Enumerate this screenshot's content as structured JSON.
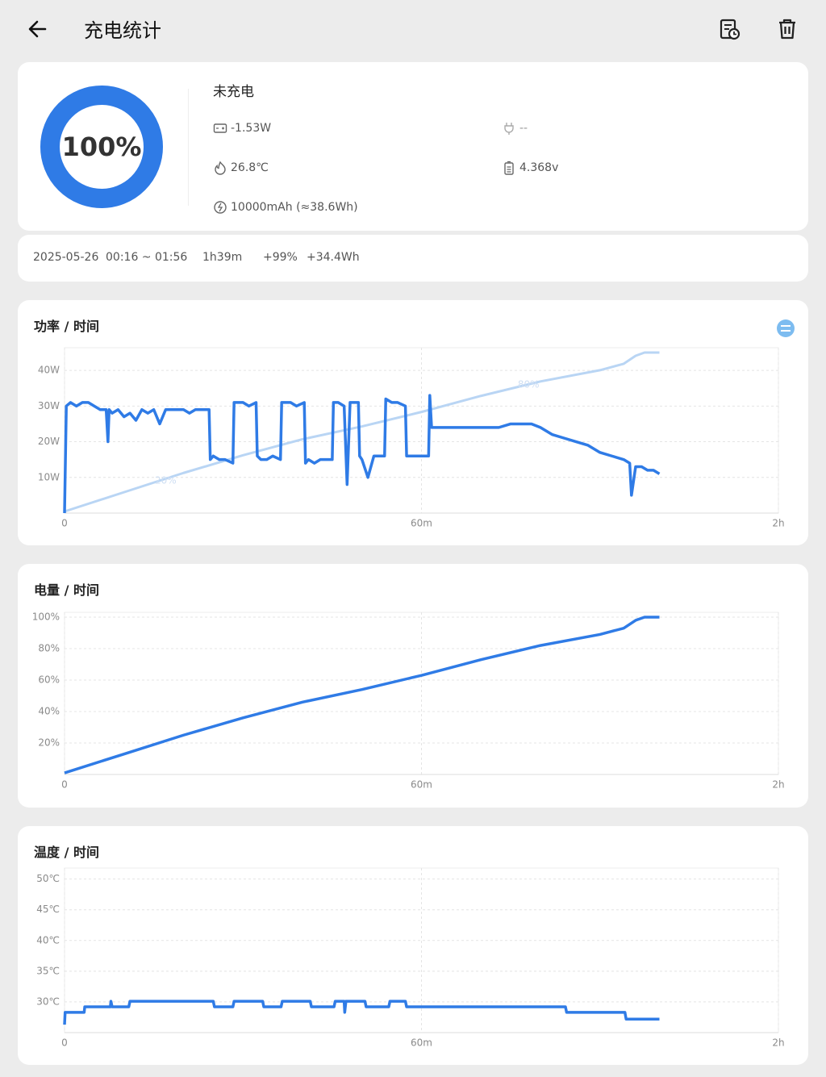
{
  "header": {
    "title": "充电统计"
  },
  "battery": {
    "value": 100,
    "label": "100%"
  },
  "status": {
    "state": "未充电",
    "power": "-1.53W",
    "input": "--",
    "temperature": "26.8℃",
    "voltage": "4.368v",
    "capacity": "10000mAh (≈38.6Wh)"
  },
  "session": {
    "date": "2025-05-26",
    "time_range": "00:16 ~ 01:56",
    "duration": "1h39m",
    "percent_gain": "+99%",
    "energy_gain": "+34.4Wh"
  },
  "chart_data": [
    {
      "type": "line",
      "title": "功率 / 时间",
      "xlim": [
        0,
        120
      ],
      "xticks": [
        0,
        {
          "value": 60,
          "label": "60m"
        },
        {
          "value": 120,
          "label": "2h"
        }
      ],
      "ylim": [
        0,
        45
      ],
      "yticks": [
        {
          "value": 10,
          "label": "10W"
        },
        {
          "value": 20,
          "label": "20W"
        },
        {
          "value": 30,
          "label": "30W"
        },
        {
          "value": 40,
          "label": "40W"
        }
      ],
      "y2lim": [
        0,
        100
      ],
      "grid": true,
      "series": [
        {
          "color": "#b9d5f4",
          "axis": "y2",
          "x": [
            0,
            10,
            20,
            30,
            40,
            50,
            60,
            70,
            80,
            90,
            94,
            96,
            97.5,
            100
          ],
          "values": [
            1,
            13,
            25,
            36,
            46,
            54,
            63,
            73,
            82,
            89,
            93,
            98,
            100,
            100
          ]
        },
        {
          "color": "#2f7be6",
          "x": [
            0,
            0.3,
            1,
            2,
            3,
            4,
            5,
            6,
            7,
            7.3,
            7.5,
            8,
            9,
            10,
            11,
            12,
            13,
            14,
            15,
            16,
            17,
            18,
            19,
            20,
            21,
            22,
            23,
            24.3,
            24.5,
            25,
            26,
            27,
            28.3,
            28.5,
            29,
            30,
            31,
            32.2,
            32.4,
            33,
            34,
            35,
            36.3,
            36.5,
            37,
            38,
            39,
            40.3,
            40.5,
            41,
            42,
            43,
            44,
            45,
            45.2,
            46,
            47,
            47.5,
            48,
            49.4,
            49.6,
            50,
            51,
            52,
            53.8,
            54,
            55,
            56,
            57.3,
            57.5,
            58,
            59,
            60,
            61.2,
            61.4,
            61.7,
            62,
            63,
            65,
            67,
            69,
            71,
            73,
            75,
            77,
            78.5,
            80,
            82,
            84,
            86,
            88,
            90,
            92,
            94,
            95,
            95.3,
            96,
            97,
            98,
            99,
            100
          ],
          "values": [
            0,
            30,
            31,
            30,
            31,
            31,
            30,
            29,
            29,
            20,
            29,
            28,
            29,
            27,
            28,
            26,
            29,
            28,
            29,
            25,
            29,
            29,
            29,
            29,
            28,
            29,
            29,
            29,
            15,
            16,
            15,
            15,
            14,
            31,
            31,
            31,
            30,
            31,
            16,
            15,
            15,
            16,
            15,
            31,
            31,
            31,
            30,
            31,
            14,
            15,
            14,
            15,
            15,
            15,
            31,
            31,
            30,
            8,
            31,
            31,
            16,
            15,
            10,
            16,
            16,
            32,
            31,
            31,
            30,
            16,
            16,
            16,
            16,
            16,
            33,
            24,
            24,
            24,
            24,
            24,
            24,
            24,
            24,
            25,
            25,
            25,
            24,
            22,
            21,
            20,
            19,
            17,
            16,
            15,
            14,
            5,
            13,
            13,
            12,
            12,
            11
          ]
        }
      ],
      "annotations": [
        {
          "text": "20%",
          "x": 17,
          "y2": 20
        },
        {
          "text": "80%",
          "x": 78,
          "y2": 80
        }
      ]
    },
    {
      "type": "line",
      "title": "电量 / 时间",
      "xlim": [
        0,
        120
      ],
      "xticks": [
        0,
        {
          "value": 60,
          "label": "60m"
        },
        {
          "value": 120,
          "label": "2h"
        }
      ],
      "ylim": [
        0,
        100
      ],
      "yticks": [
        {
          "value": 20,
          "label": "20%"
        },
        {
          "value": 40,
          "label": "40%"
        },
        {
          "value": 60,
          "label": "60%"
        },
        {
          "value": 80,
          "label": "80%"
        },
        {
          "value": 100,
          "label": "100%"
        }
      ],
      "grid": true,
      "series": [
        {
          "color": "#2f7be6",
          "x": [
            0,
            10,
            20,
            30,
            40,
            50,
            60,
            70,
            80,
            90,
            94,
            96,
            97.5,
            100
          ],
          "values": [
            1,
            13,
            25,
            36,
            46,
            54,
            63,
            73,
            82,
            89,
            93,
            98,
            100,
            100
          ]
        }
      ]
    },
    {
      "type": "line",
      "title": "温度 / 时间",
      "xlim": [
        0,
        120
      ],
      "xticks": [
        0,
        {
          "value": 60,
          "label": "60m"
        },
        {
          "value": 120,
          "label": "2h"
        }
      ],
      "ylim": [
        25,
        51
      ],
      "yticks": [
        {
          "value": 30,
          "label": "30℃"
        },
        {
          "value": 35,
          "label": "35℃"
        },
        {
          "value": 40,
          "label": "40℃"
        },
        {
          "value": 45,
          "label": "45℃"
        },
        {
          "value": 50,
          "label": "50℃"
        }
      ],
      "grid": true,
      "series": [
        {
          "color": "#2f7be6",
          "x": [
            0,
            0.1,
            3.3,
            3.4,
            7.7,
            7.8,
            8,
            10.8,
            11,
            25,
            25.2,
            28.3,
            28.5,
            33.3,
            33.5,
            36.4,
            36.6,
            41.3,
            41.5,
            45.3,
            45.5,
            47,
            47.1,
            47.3,
            47.5,
            50.5,
            50.7,
            54.5,
            54.7,
            57.3,
            57.5,
            84.2,
            84.4,
            94.2,
            94.4,
            100
          ],
          "values": [
            26.3,
            28.3,
            28.3,
            29.2,
            29.2,
            30.1,
            29.2,
            29.2,
            30.1,
            30.1,
            29.2,
            29.2,
            30.1,
            30.1,
            29.2,
            29.2,
            30.1,
            30.1,
            29.2,
            29.2,
            30.1,
            30.1,
            28.3,
            30.1,
            30.1,
            30.1,
            29.2,
            29.2,
            30.1,
            30.1,
            29.2,
            29.2,
            28.3,
            28.3,
            27.2,
            27.2
          ]
        }
      ]
    }
  ]
}
